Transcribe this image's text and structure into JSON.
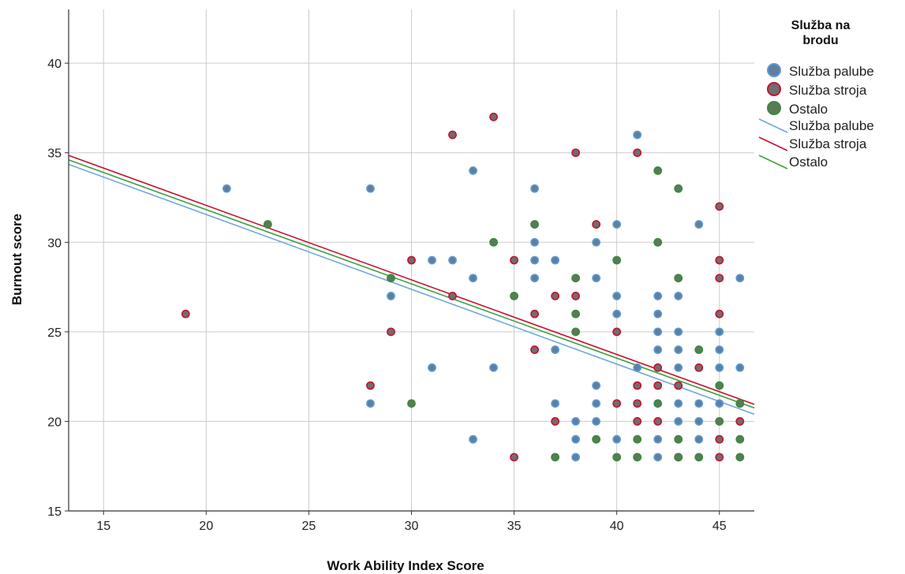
{
  "chart_data": {
    "type": "scatter",
    "xlabel": "Work Ability Index Score",
    "ylabel": "Burnout score",
    "xlim": [
      13.3,
      46.7
    ],
    "ylim": [
      15,
      43
    ],
    "xticks": [
      15,
      20,
      25,
      30,
      35,
      40,
      45
    ],
    "yticks": [
      15,
      20,
      25,
      30,
      35,
      40
    ],
    "grid": true,
    "legend": {
      "title_line1": "Služba na",
      "title_line2": "brodu",
      "position": "right"
    },
    "colors": {
      "deck_fill": "#5f7f9f",
      "deck_edge": "#5b9bd5",
      "deck_line": "#6fa8dc",
      "engine_fill": "#6e6e6e",
      "engine_edge": "#c8102e",
      "engine_line": "#c8102e",
      "other_fill": "#5a7a5a",
      "other_edge": "#3a8a3a",
      "other_line": "#3f9f3f",
      "grid": "#cccccc",
      "axis": "#333333"
    },
    "series": [
      {
        "name": "Služba palube",
        "marker": "deck",
        "points": [
          [
            21,
            33
          ],
          [
            28,
            33
          ],
          [
            28,
            21
          ],
          [
            29,
            27
          ],
          [
            31,
            29
          ],
          [
            31,
            23
          ],
          [
            32,
            29
          ],
          [
            33,
            34
          ],
          [
            33,
            28
          ],
          [
            33,
            19
          ],
          [
            34,
            23
          ],
          [
            36,
            33
          ],
          [
            36,
            30
          ],
          [
            36,
            29
          ],
          [
            36,
            28
          ],
          [
            37,
            29
          ],
          [
            37,
            24
          ],
          [
            37,
            21
          ],
          [
            38,
            20
          ],
          [
            38,
            19
          ],
          [
            38,
            18
          ],
          [
            39,
            30
          ],
          [
            39,
            28
          ],
          [
            39,
            22
          ],
          [
            39,
            21
          ],
          [
            39,
            20
          ],
          [
            40,
            31
          ],
          [
            40,
            27
          ],
          [
            40,
            26
          ],
          [
            40,
            19
          ],
          [
            41,
            36
          ],
          [
            41,
            23
          ],
          [
            41,
            18
          ],
          [
            42,
            27
          ],
          [
            42,
            26
          ],
          [
            42,
            25
          ],
          [
            42,
            24
          ],
          [
            42,
            19
          ],
          [
            42,
            18
          ],
          [
            43,
            27
          ],
          [
            43,
            25
          ],
          [
            43,
            24
          ],
          [
            43,
            23
          ],
          [
            43,
            21
          ],
          [
            43,
            20
          ],
          [
            44,
            31
          ],
          [
            44,
            21
          ],
          [
            44,
            20
          ],
          [
            44,
            19
          ],
          [
            45,
            25
          ],
          [
            45,
            24
          ],
          [
            45,
            23
          ],
          [
            45,
            21
          ],
          [
            46,
            28
          ],
          [
            46,
            23
          ],
          [
            46,
            21
          ]
        ]
      },
      {
        "name": "Služba stroja",
        "marker": "engine",
        "points": [
          [
            19,
            26
          ],
          [
            28,
            22
          ],
          [
            29,
            25
          ],
          [
            30,
            29
          ],
          [
            32,
            36
          ],
          [
            32,
            27
          ],
          [
            34,
            37
          ],
          [
            35,
            29
          ],
          [
            35,
            18
          ],
          [
            36,
            26
          ],
          [
            36,
            24
          ],
          [
            37,
            27
          ],
          [
            37,
            20
          ],
          [
            38,
            35
          ],
          [
            38,
            27
          ],
          [
            39,
            31
          ],
          [
            40,
            25
          ],
          [
            40,
            21
          ],
          [
            41,
            35
          ],
          [
            41,
            22
          ],
          [
            41,
            21
          ],
          [
            41,
            20
          ],
          [
            42,
            23
          ],
          [
            42,
            22
          ],
          [
            42,
            20
          ],
          [
            43,
            22
          ],
          [
            43,
            18
          ],
          [
            44,
            23
          ],
          [
            45,
            32
          ],
          [
            45,
            29
          ],
          [
            45,
            28
          ],
          [
            45,
            26
          ],
          [
            45,
            19
          ],
          [
            45,
            18
          ],
          [
            46,
            20
          ]
        ]
      },
      {
        "name": "Ostalo",
        "marker": "other",
        "points": [
          [
            23,
            31
          ],
          [
            29,
            28
          ],
          [
            30,
            21
          ],
          [
            34,
            30
          ],
          [
            35,
            27
          ],
          [
            36,
            31
          ],
          [
            37,
            18
          ],
          [
            38,
            28
          ],
          [
            38,
            26
          ],
          [
            38,
            25
          ],
          [
            39,
            19
          ],
          [
            40,
            29
          ],
          [
            40,
            18
          ],
          [
            41,
            19
          ],
          [
            41,
            18
          ],
          [
            42,
            34
          ],
          [
            42,
            30
          ],
          [
            42,
            21
          ],
          [
            43,
            33
          ],
          [
            43,
            28
          ],
          [
            43,
            19
          ],
          [
            43,
            18
          ],
          [
            44,
            24
          ],
          [
            44,
            18
          ],
          [
            45,
            22
          ],
          [
            45,
            20
          ],
          [
            46,
            19
          ],
          [
            46,
            18
          ],
          [
            46,
            21
          ]
        ]
      }
    ],
    "fit_lines": [
      {
        "name": "Služba palube",
        "marker": "deck",
        "x": [
          13.3,
          46.7
        ],
        "y": [
          34.35,
          20.4
        ]
      },
      {
        "name": "Služba stroja",
        "marker": "engine",
        "x": [
          13.3,
          46.7
        ],
        "y": [
          34.85,
          20.95
        ]
      },
      {
        "name": "Ostalo",
        "marker": "other",
        "x": [
          13.3,
          46.7
        ],
        "y": [
          34.6,
          20.75
        ]
      }
    ]
  }
}
